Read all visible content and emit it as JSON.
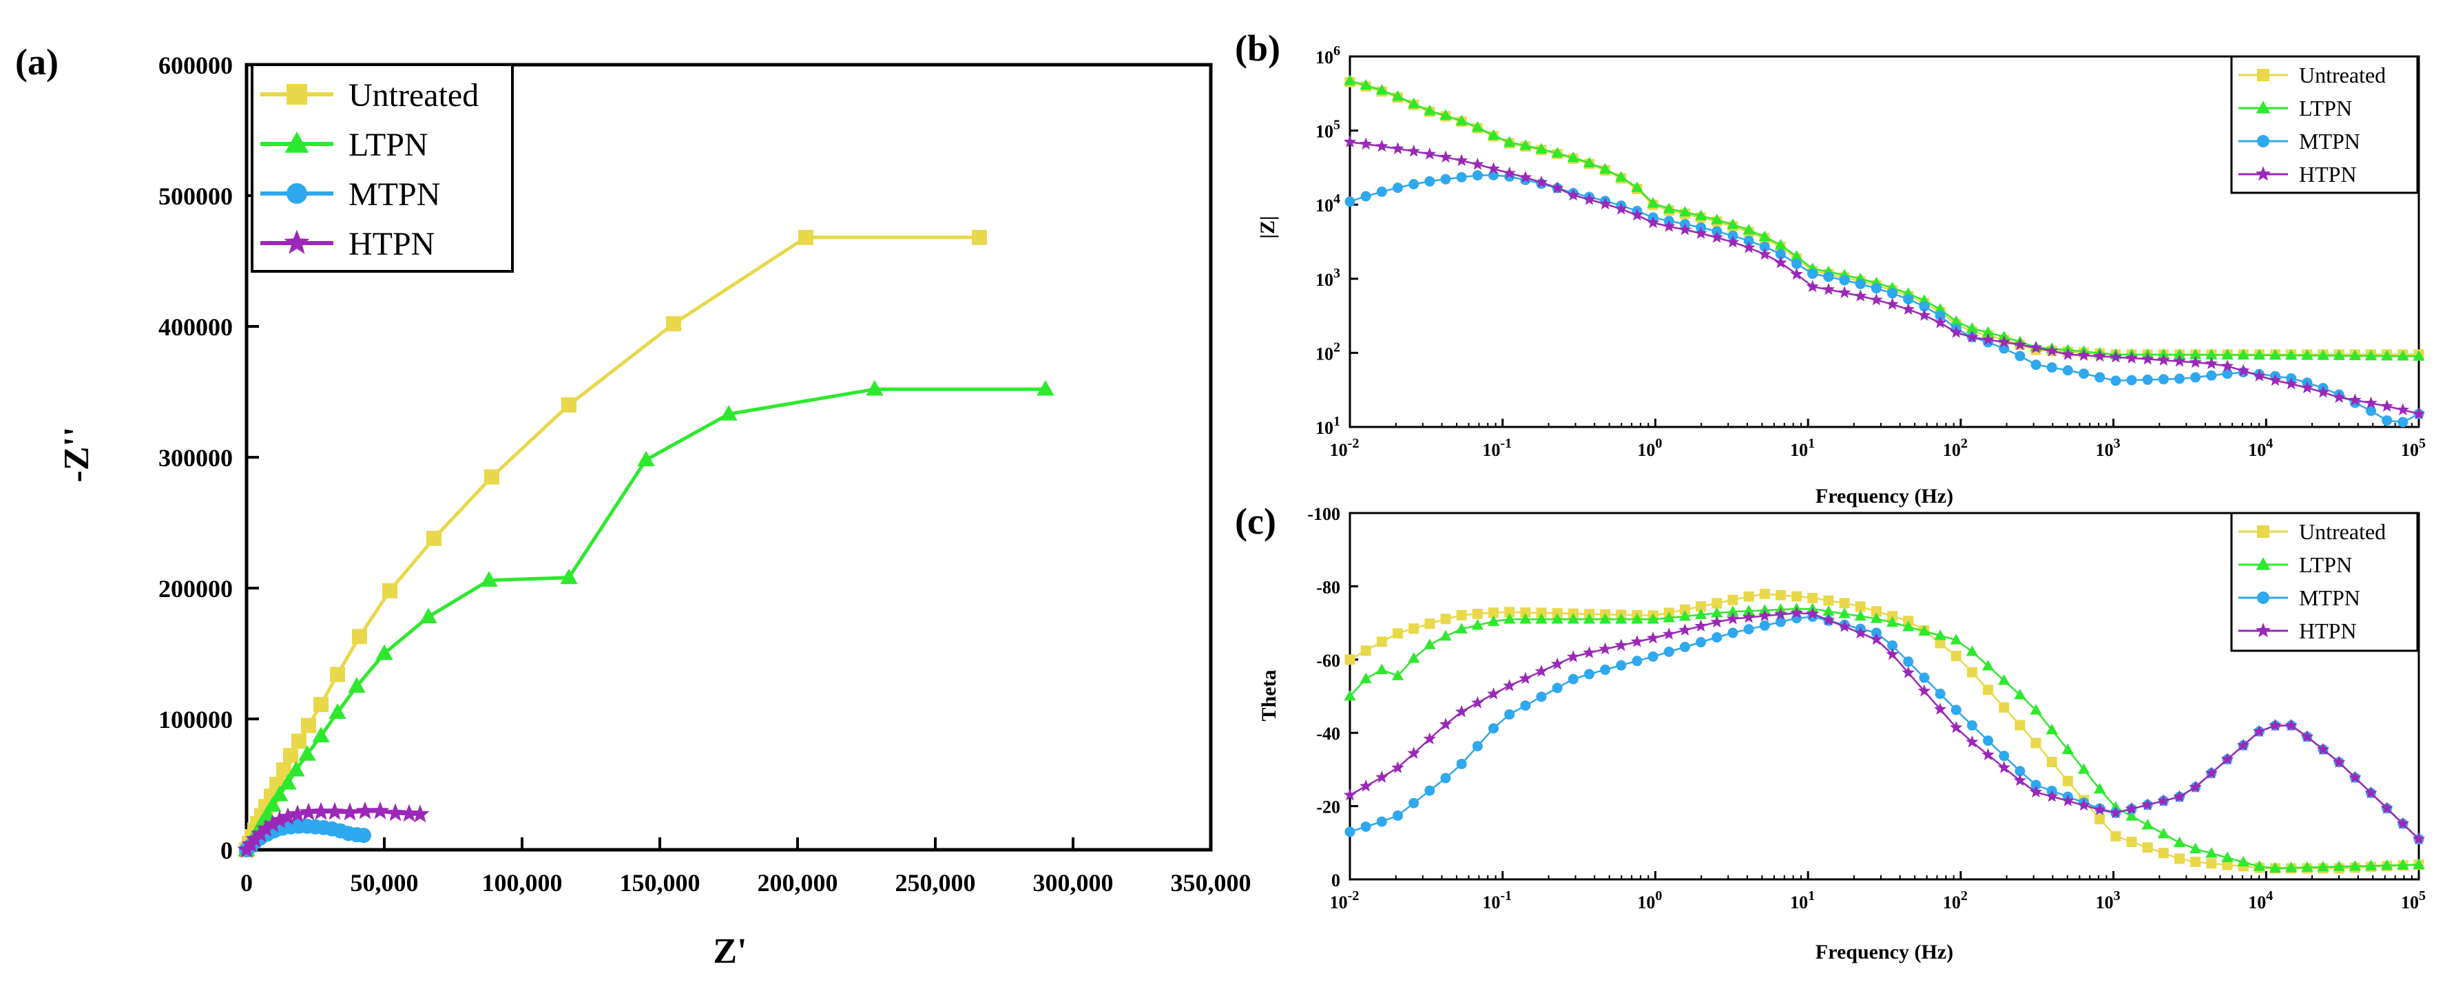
{
  "colors": {
    "Untreated": "#e8d84a",
    "LTPN": "#2ee82e",
    "MTPN": "#2ea8ee",
    "HTPN": "#9b28b8"
  },
  "markers": {
    "Untreated": "square",
    "LTPN": "triangle",
    "MTPN": "circle",
    "HTPN": "star"
  },
  "chart_data": [
    {
      "panel": "(a)",
      "type": "line",
      "title": "",
      "xlabel": "Z'",
      "ylabel": "-Z''",
      "xlim": [
        0,
        350000
      ],
      "ylim": [
        0,
        600000
      ],
      "x_ticks": [
        "0",
        "50,000",
        "100,000",
        "150,000",
        "200,000",
        "250,000",
        "300,000",
        "350,000"
      ],
      "y_ticks": [
        "0",
        "100000",
        "200000",
        "300000",
        "400000",
        "500000",
        "600000"
      ],
      "legend": "top-left",
      "series": [
        {
          "name": "Untreated",
          "points": [
            [
              0,
              0
            ],
            [
              1000,
              5000
            ],
            [
              2000,
              10000
            ],
            [
              3000,
              15000
            ],
            [
              4000,
              20000
            ],
            [
              5500,
              26000
            ],
            [
              7000,
              33000
            ],
            [
              9000,
              41000
            ],
            [
              11000,
              50000
            ],
            [
              13500,
              61000
            ],
            [
              16000,
              72000
            ],
            [
              19000,
              83000
            ],
            [
              22500,
              95000
            ],
            [
              27000,
              111000
            ],
            [
              33000,
              134000
            ],
            [
              41000,
              163000
            ],
            [
              52000,
              198000
            ],
            [
              68000,
              238000
            ],
            [
              89000,
              285000
            ],
            [
              117000,
              340000
            ],
            [
              155000,
              402000
            ],
            [
              203000,
              468000
            ],
            [
              266000,
              468000
            ]
          ]
        },
        {
          "name": "LTPN",
          "points": [
            [
              0,
              0
            ],
            [
              1000,
              4000
            ],
            [
              2500,
              9000
            ],
            [
              4000,
              14000
            ],
            [
              5500,
              20000
            ],
            [
              7500,
              27000
            ],
            [
              9500,
              34000
            ],
            [
              12000,
              42000
            ],
            [
              15000,
              51000
            ],
            [
              18000,
              61000
            ],
            [
              22000,
              73000
            ],
            [
              27000,
              87000
            ],
            [
              33000,
              105000
            ],
            [
              40000,
              125000
            ],
            [
              50000,
              150000
            ],
            [
              66000,
              178000
            ],
            [
              88000,
              206000
            ],
            [
              117000,
              208000
            ],
            [
              145000,
              298000
            ],
            [
              175000,
              333000
            ],
            [
              228000,
              352000
            ],
            [
              290000,
              352000
            ]
          ]
        },
        {
          "name": "MTPN",
          "points": [
            [
              0,
              0
            ],
            [
              1500,
              3000
            ],
            [
              3000,
              6000
            ],
            [
              5000,
              9000
            ],
            [
              7500,
              12000
            ],
            [
              10000,
              14500
            ],
            [
              13000,
              16500
            ],
            [
              16000,
              17500
            ],
            [
              19000,
              18000
            ],
            [
              22000,
              18000
            ],
            [
              25000,
              17500
            ],
            [
              28000,
              17000
            ],
            [
              31000,
              16000
            ],
            [
              34000,
              14500
            ],
            [
              37000,
              12500
            ],
            [
              40000,
              11500
            ],
            [
              42500,
              11000
            ]
          ]
        },
        {
          "name": "HTPN",
          "points": [
            [
              0,
              0
            ],
            [
              1500,
              4000
            ],
            [
              3000,
              8000
            ],
            [
              5000,
              12000
            ],
            [
              7000,
              16000
            ],
            [
              9500,
              19500
            ],
            [
              12000,
              22500
            ],
            [
              15000,
              25000
            ],
            [
              18500,
              27000
            ],
            [
              22500,
              28500
            ],
            [
              27000,
              29000
            ],
            [
              32000,
              29000
            ],
            [
              37500,
              28500
            ],
            [
              43000,
              29500
            ],
            [
              48500,
              29500
            ],
            [
              54000,
              28000
            ],
            [
              59000,
              27500
            ],
            [
              63000,
              27000
            ]
          ]
        }
      ]
    },
    {
      "panel": "(b)",
      "type": "line",
      "title": "",
      "xlabel": "Frequency (Hz)",
      "ylabel": "|Z|",
      "x_scale": "log",
      "y_scale": "log",
      "xlim": [
        0.01,
        100000
      ],
      "ylim": [
        10,
        1000000
      ],
      "x_ticks": [
        {
          "base": "10",
          "exp": "-2"
        },
        {
          "base": "10",
          "exp": "-1"
        },
        {
          "base": "10",
          "exp": "0"
        },
        {
          "base": "10",
          "exp": "1"
        },
        {
          "base": "10",
          "exp": "2"
        },
        {
          "base": "10",
          "exp": "3"
        },
        {
          "base": "10",
          "exp": "4"
        },
        {
          "base": "10",
          "exp": "5"
        }
      ],
      "y_ticks": [
        {
          "base": "10",
          "exp": "1"
        },
        {
          "base": "10",
          "exp": "2"
        },
        {
          "base": "10",
          "exp": "3"
        },
        {
          "base": "10",
          "exp": "4"
        },
        {
          "base": "10",
          "exp": "5"
        },
        {
          "base": "10",
          "exp": "6"
        }
      ],
      "legend": "top-right",
      "series": [
        {
          "name": "Untreated",
          "points": [
            [
              0.01,
              450000
            ],
            [
              0.03,
              190000
            ],
            [
              0.1,
              70000
            ],
            [
              1,
              9000
            ],
            [
              10,
              1300
            ],
            [
              100,
              210
            ],
            [
              300,
              110
            ],
            [
              1000,
              95
            ],
            [
              10000,
              95
            ],
            [
              100000,
              95
            ]
          ]
        },
        {
          "name": "LTPN",
          "points": [
            [
              0.01,
              470000
            ],
            [
              0.03,
              195000
            ],
            [
              0.1,
              72000
            ],
            [
              1,
              9500
            ],
            [
              10,
              1400
            ],
            [
              100,
              230
            ],
            [
              300,
              120
            ],
            [
              1000,
              95
            ],
            [
              10000,
              93
            ],
            [
              100000,
              90
            ]
          ]
        },
        {
          "name": "MTPN",
          "points": [
            [
              0.01,
              11000
            ],
            [
              0.03,
              20000
            ],
            [
              0.07,
              25000
            ],
            [
              0.1,
              25000
            ],
            [
              0.3,
              14000
            ],
            [
              1,
              6500
            ],
            [
              10,
              1200
            ],
            [
              100,
              180
            ],
            [
              300,
              70
            ],
            [
              1000,
              42
            ],
            [
              3000,
              45
            ],
            [
              7000,
              55
            ],
            [
              15000,
              45
            ],
            [
              40000,
              20
            ],
            [
              70000,
              10
            ],
            [
              100000,
              15
            ]
          ]
        },
        {
          "name": "HTPN",
          "points": [
            [
              0.01,
              70000
            ],
            [
              0.03,
              50000
            ],
            [
              0.1,
              28000
            ],
            [
              0.3,
              13000
            ],
            [
              1,
              5500
            ],
            [
              10,
              800
            ],
            [
              100,
              170
            ],
            [
              500,
              95
            ],
            [
              1000,
              88
            ],
            [
              5000,
              70
            ],
            [
              10000,
              45
            ],
            [
              30000,
              25
            ],
            [
              100000,
              15
            ]
          ]
        }
      ]
    },
    {
      "panel": "(c)",
      "type": "line",
      "title": "",
      "xlabel": "Frequency (Hz)",
      "ylabel": "Theta",
      "x_scale": "log",
      "xlim": [
        0.01,
        100000
      ],
      "ylim": [
        0,
        -100
      ],
      "x_ticks": [
        {
          "base": "10",
          "exp": "-2"
        },
        {
          "base": "10",
          "exp": "-1"
        },
        {
          "base": "10",
          "exp": "0"
        },
        {
          "base": "10",
          "exp": "1"
        },
        {
          "base": "10",
          "exp": "2"
        },
        {
          "base": "10",
          "exp": "3"
        },
        {
          "base": "10",
          "exp": "4"
        },
        {
          "base": "10",
          "exp": "5"
        }
      ],
      "y_ticks": [
        "0",
        "-20",
        "-40",
        "-60",
        "-80",
        "-100"
      ],
      "legend": "top-right",
      "series": [
        {
          "name": "Untreated",
          "points": [
            [
              0.01,
              -60
            ],
            [
              0.02,
              -67
            ],
            [
              0.05,
              -72
            ],
            [
              0.1,
              -73
            ],
            [
              1,
              -72
            ],
            [
              3,
              -76
            ],
            [
              5,
              -78
            ],
            [
              10,
              -77
            ],
            [
              20,
              -75
            ],
            [
              50,
              -70
            ],
            [
              100,
              -60
            ],
            [
              300,
              -38
            ],
            [
              1000,
              -12
            ],
            [
              3000,
              -5
            ],
            [
              10000,
              -3
            ],
            [
              30000,
              -3
            ],
            [
              100000,
              -4
            ]
          ]
        },
        {
          "name": "LTPN",
          "points": [
            [
              0.01,
              -50
            ],
            [
              0.015,
              -58
            ],
            [
              0.02,
              -55
            ],
            [
              0.03,
              -63
            ],
            [
              0.05,
              -68
            ],
            [
              0.1,
              -71
            ],
            [
              1,
              -71
            ],
            [
              3,
              -73
            ],
            [
              10,
              -74
            ],
            [
              30,
              -71
            ],
            [
              100,
              -65
            ],
            [
              300,
              -47
            ],
            [
              1000,
              -20
            ],
            [
              3000,
              -9
            ],
            [
              10000,
              -3
            ],
            [
              100000,
              -4
            ]
          ]
        },
        {
          "name": "MTPN",
          "points": [
            [
              0.01,
              -13
            ],
            [
              0.02,
              -17
            ],
            [
              0.05,
              -30
            ],
            [
              0.1,
              -44
            ],
            [
              0.3,
              -55
            ],
            [
              1,
              -61
            ],
            [
              3,
              -67
            ],
            [
              10,
              -72
            ],
            [
              30,
              -67
            ],
            [
              100,
              -45
            ],
            [
              300,
              -26
            ],
            [
              1000,
              -18
            ],
            [
              3000,
              -23
            ],
            [
              10000,
              -42
            ],
            [
              15000,
              -42
            ],
            [
              30000,
              -32
            ],
            [
              100000,
              -11
            ]
          ]
        },
        {
          "name": "HTPN",
          "points": [
            [
              0.01,
              -23
            ],
            [
              0.02,
              -30
            ],
            [
              0.05,
              -45
            ],
            [
              0.1,
              -52
            ],
            [
              0.3,
              -61
            ],
            [
              1,
              -66
            ],
            [
              3,
              -71
            ],
            [
              10,
              -73
            ],
            [
              30,
              -65
            ],
            [
              100,
              -40
            ],
            [
              300,
              -24
            ],
            [
              1000,
              -18
            ],
            [
              3000,
              -23
            ],
            [
              10000,
              -42
            ],
            [
              15000,
              -42
            ],
            [
              30000,
              -32
            ],
            [
              100000,
              -11
            ]
          ]
        }
      ]
    }
  ]
}
